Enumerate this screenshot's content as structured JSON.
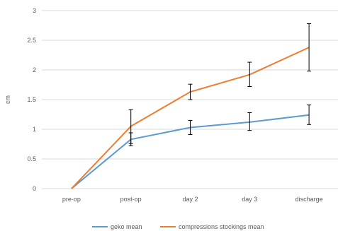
{
  "chart_data": {
    "type": "line",
    "title": "",
    "xlabel": "",
    "ylabel": "cm",
    "categories": [
      "pre-op",
      "post-op",
      "day 2",
      "day 3",
      "discharge"
    ],
    "ylim": [
      0,
      3
    ],
    "yticks": [
      0,
      0.5,
      1,
      1.5,
      2,
      2.5,
      3
    ],
    "ytick_labels": [
      "0",
      "0.5",
      "1",
      "1.5",
      "2",
      "2.5",
      "3"
    ],
    "grid": true,
    "legend_position": "bottom",
    "series": [
      {
        "name": "geko mean",
        "color": "#5b9bd5",
        "values": [
          0,
          0.83,
          1.03,
          1.12,
          1.24
        ],
        "err_low": [
          0,
          0.72,
          0.91,
          0.98,
          1.08
        ],
        "err_high": [
          0,
          0.94,
          1.15,
          1.28,
          1.41
        ]
      },
      {
        "name": "compressions stockings mean",
        "color": "#ed7d31",
        "values": [
          0,
          1.05,
          1.63,
          1.92,
          2.38
        ],
        "err_low": [
          0,
          0.76,
          1.5,
          1.72,
          1.98
        ],
        "err_high": [
          0,
          1.33,
          1.76,
          2.13,
          2.78
        ]
      }
    ]
  }
}
